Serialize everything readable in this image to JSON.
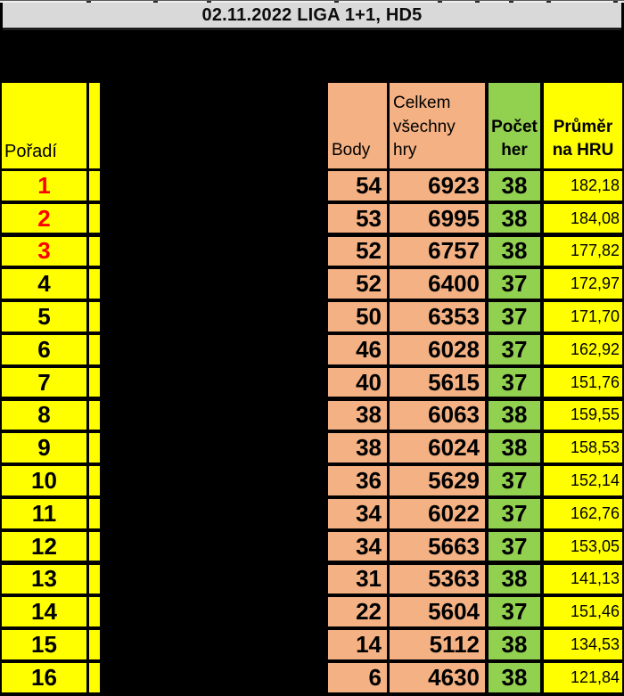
{
  "title_bar": {
    "text": "02.11.2022 LIGA 1+1, HD5"
  },
  "table": {
    "headers": {
      "rank": "Pořadí",
      "points": "Body",
      "total_games": "Celkem\nvšechny\nhry",
      "games_count": "Počet\nher",
      "average": "Průměr\nna HRU"
    },
    "rows": [
      {
        "rank": "1",
        "points": "54",
        "total": "6923",
        "games": "38",
        "average": "182,18",
        "rank_red": true
      },
      {
        "rank": "2",
        "points": "53",
        "total": "6995",
        "games": "38",
        "average": "184,08",
        "rank_red": true
      },
      {
        "rank": "3",
        "points": "52",
        "total": "6757",
        "games": "38",
        "average": "177,82",
        "rank_red": true
      },
      {
        "rank": "4",
        "points": "52",
        "total": "6400",
        "games": "37",
        "average": "172,97",
        "rank_red": false
      },
      {
        "rank": "5",
        "points": "50",
        "total": "6353",
        "games": "37",
        "average": "171,70",
        "rank_red": false
      },
      {
        "rank": "6",
        "points": "46",
        "total": "6028",
        "games": "37",
        "average": "162,92",
        "rank_red": false
      },
      {
        "rank": "7",
        "points": "40",
        "total": "5615",
        "games": "37",
        "average": "151,76",
        "rank_red": false
      },
      {
        "rank": "8",
        "points": "38",
        "total": "6063",
        "games": "38",
        "average": "159,55",
        "rank_red": false
      },
      {
        "rank": "9",
        "points": "38",
        "total": "6024",
        "games": "38",
        "average": "158,53",
        "rank_red": false
      },
      {
        "rank": "10",
        "points": "36",
        "total": "5629",
        "games": "37",
        "average": "152,14",
        "rank_red": false
      },
      {
        "rank": "11",
        "points": "34",
        "total": "6022",
        "games": "37",
        "average": "162,76",
        "rank_red": false
      },
      {
        "rank": "12",
        "points": "34",
        "total": "5663",
        "games": "37",
        "average": "153,05",
        "rank_red": false
      },
      {
        "rank": "13",
        "points": "31",
        "total": "5363",
        "games": "38",
        "average": "141,13",
        "rank_red": false
      },
      {
        "rank": "14",
        "points": "22",
        "total": "5604",
        "games": "37",
        "average": "151,46",
        "rank_red": false
      },
      {
        "rank": "15",
        "points": "14",
        "total": "5112",
        "games": "38",
        "average": "134,53",
        "rank_red": false
      },
      {
        "rank": "16",
        "points": "6",
        "total": "4630",
        "games": "38",
        "average": "121,84",
        "rank_red": false
      }
    ]
  },
  "colors": {
    "background": "#000000",
    "title_bar_bg": "#d9d9d9",
    "rank_column_bg": "#ffff00",
    "points_column_bg": "#f4b183",
    "games_column_bg": "#92d050",
    "average_column_bg": "#ffff00",
    "top3_rank_text": "#ff0000"
  }
}
